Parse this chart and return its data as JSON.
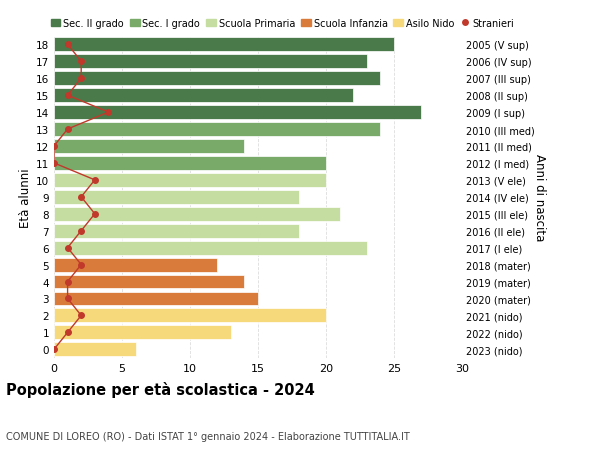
{
  "ages": [
    18,
    17,
    16,
    15,
    14,
    13,
    12,
    11,
    10,
    9,
    8,
    7,
    6,
    5,
    4,
    3,
    2,
    1,
    0
  ],
  "values": [
    25,
    23,
    24,
    22,
    27,
    24,
    14,
    20,
    20,
    18,
    21,
    18,
    23,
    12,
    14,
    15,
    20,
    13,
    6
  ],
  "years_labels": [
    "2005 (V sup)",
    "2006 (IV sup)",
    "2007 (III sup)",
    "2008 (II sup)",
    "2009 (I sup)",
    "2010 (III med)",
    "2011 (II med)",
    "2012 (I med)",
    "2013 (V ele)",
    "2014 (IV ele)",
    "2015 (III ele)",
    "2016 (II ele)",
    "2017 (I ele)",
    "2018 (mater)",
    "2019 (mater)",
    "2020 (mater)",
    "2021 (nido)",
    "2022 (nido)",
    "2023 (nido)"
  ],
  "bar_colors": [
    "#4a7a4a",
    "#4a7a4a",
    "#4a7a4a",
    "#4a7a4a",
    "#4a7a4a",
    "#7aaa6a",
    "#7aaa6a",
    "#7aaa6a",
    "#c5dda0",
    "#c5dda0",
    "#c5dda0",
    "#c5dda0",
    "#c5dda0",
    "#d97b3a",
    "#d97b3a",
    "#d97b3a",
    "#f5d97a",
    "#f5d97a",
    "#f5d97a"
  ],
  "stranieri_values": [
    1,
    2,
    2,
    1,
    4,
    1,
    0,
    0,
    3,
    2,
    3,
    2,
    1,
    2,
    1,
    1,
    2,
    1,
    0
  ],
  "legend_labels": [
    "Sec. II grado",
    "Sec. I grado",
    "Scuola Primaria",
    "Scuola Infanzia",
    "Asilo Nido",
    "Stranieri"
  ],
  "legend_colors": [
    "#4a7a4a",
    "#7aaa6a",
    "#c5dda0",
    "#d97b3a",
    "#f5d97a",
    "#c0392b"
  ],
  "title": "Popolazione per età scolastica - 2024",
  "subtitle": "COMUNE DI LOREO (RO) - Dati ISTAT 1° gennaio 2024 - Elaborazione TUTTITALIA.IT",
  "ylabel_left": "Età alunni",
  "ylabel_right": "Anni di nascita",
  "xlim": [
    0,
    30
  ],
  "background_color": "#ffffff",
  "grid_color": "#dddddd"
}
